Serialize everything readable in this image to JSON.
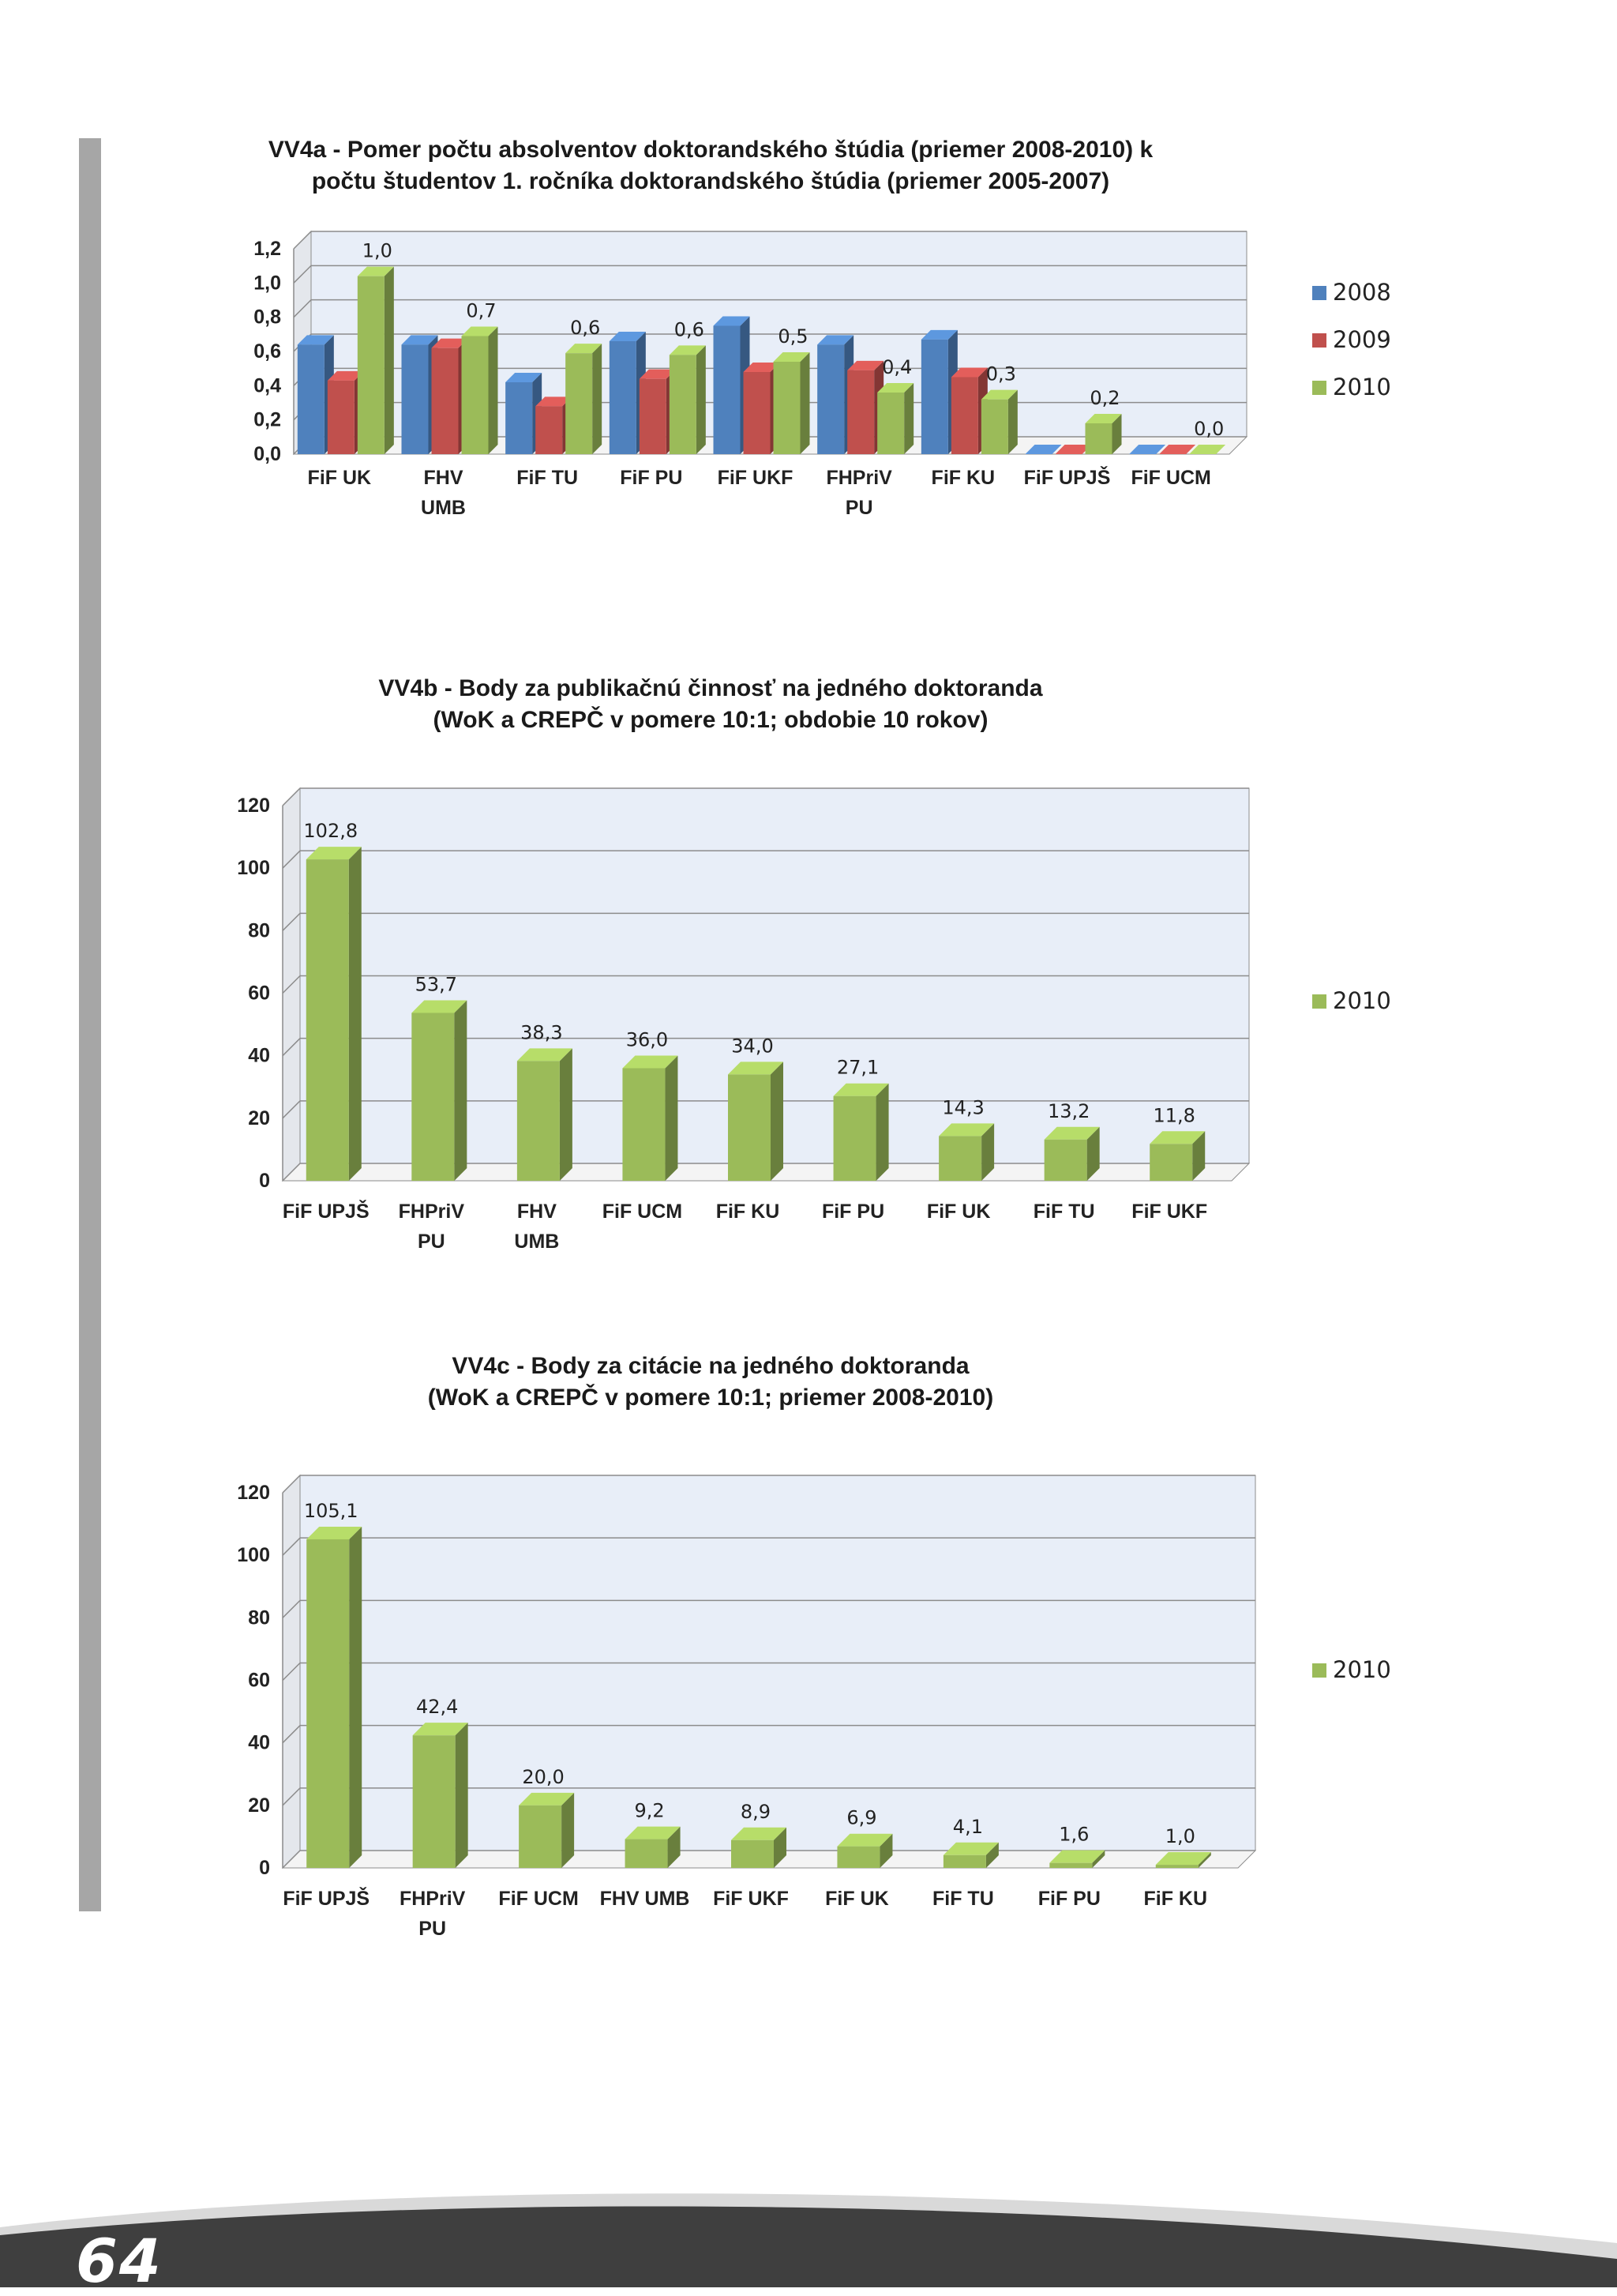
{
  "page": {
    "number": "64"
  },
  "chart_data": [
    {
      "id": "vv4a",
      "type": "bar",
      "title_lines": [
        "VV4a - Pomer počtu absolventov doktorandského štúdia (priemer 2008-2010) k",
        "počtu študentov 1. ročníka doktorandského štúdia (priemer 2005-2007)"
      ],
      "categories": [
        "FiF UK",
        "FHV\nUMB",
        "FiF TU",
        "FiF PU",
        "FiF  UKF",
        "FHPriV\nPU",
        "FiF  KU",
        "FiF UPJŠ",
        "FiF  UCM"
      ],
      "series": [
        {
          "name": "2008",
          "color": "#4f81bd",
          "values": [
            0.64,
            0.64,
            0.42,
            0.66,
            0.75,
            0.64,
            0.67,
            0.0,
            0.0
          ]
        },
        {
          "name": "2009",
          "color": "#c0504d",
          "values": [
            0.43,
            0.62,
            0.28,
            0.44,
            0.48,
            0.49,
            0.45,
            0.0,
            0.0
          ]
        },
        {
          "name": "2010",
          "color": "#9bbb59",
          "values": [
            1.04,
            0.69,
            0.59,
            0.58,
            0.54,
            0.36,
            0.32,
            0.18,
            0.0
          ]
        }
      ],
      "data_labels": [
        "1,0",
        "0,7",
        "0,6",
        "0,6",
        "0,5",
        "0,4",
        "0,3",
        "0,2",
        "0,0"
      ],
      "ylim": [
        0,
        1.2
      ],
      "yticks": [
        "0,0",
        "0,2",
        "0,4",
        "0,6",
        "0,8",
        "1,0",
        "1,2"
      ],
      "legend_position": "right",
      "grid": true
    },
    {
      "id": "vv4b",
      "type": "bar",
      "title_lines": [
        "VV4b - Body za publikačnú činnosť na jedného doktoranda",
        "(WoK a CREPČ v pomere 10:1; obdobie 10 rokov)"
      ],
      "categories": [
        "FiF UPJŠ",
        "FHPriV\nPU",
        "FHV\nUMB",
        "FiF  UCM",
        "FiF  KU",
        "FiF PU",
        "FiF UK",
        "FiF TU",
        "FiF  UKF"
      ],
      "series": [
        {
          "name": "2010",
          "color": "#9bbb59",
          "values": [
            102.8,
            53.7,
            38.3,
            36.0,
            34.0,
            27.1,
            14.3,
            13.2,
            11.8
          ]
        }
      ],
      "data_labels": [
        "102,8",
        "53,7",
        "38,3",
        "36,0",
        "34,0",
        "27,1",
        "14,3",
        "13,2",
        "11,8"
      ],
      "ylim": [
        0,
        120
      ],
      "yticks": [
        "0",
        "20",
        "40",
        "60",
        "80",
        "100",
        "120"
      ],
      "legend_position": "right",
      "grid": true
    },
    {
      "id": "vv4c",
      "type": "bar",
      "title_lines": [
        "VV4c -  Body za citácie na jedného doktoranda",
        "(WoK a CREPČ v pomere 10:1; priemer 2008-2010)"
      ],
      "categories": [
        "FiF UPJŠ",
        "FHPriV\nPU",
        "FiF  UCM",
        "FHV UMB",
        "FiF  UKF",
        "FiF UK",
        "FiF TU",
        "FiF PU",
        "FiF  KU"
      ],
      "series": [
        {
          "name": "2010",
          "color": "#9bbb59",
          "values": [
            105.1,
            42.4,
            20.0,
            9.2,
            8.9,
            6.9,
            4.1,
            1.6,
            1.0
          ]
        }
      ],
      "data_labels": [
        "105,1",
        "42,4",
        "20,0",
        "9,2",
        "8,9",
        "6,9",
        "4,1",
        "1,6",
        "1,0"
      ],
      "ylim": [
        0,
        120
      ],
      "yticks": [
        "0",
        "20",
        "40",
        "60",
        "80",
        "100",
        "120"
      ],
      "legend_position": "right",
      "grid": true
    }
  ]
}
